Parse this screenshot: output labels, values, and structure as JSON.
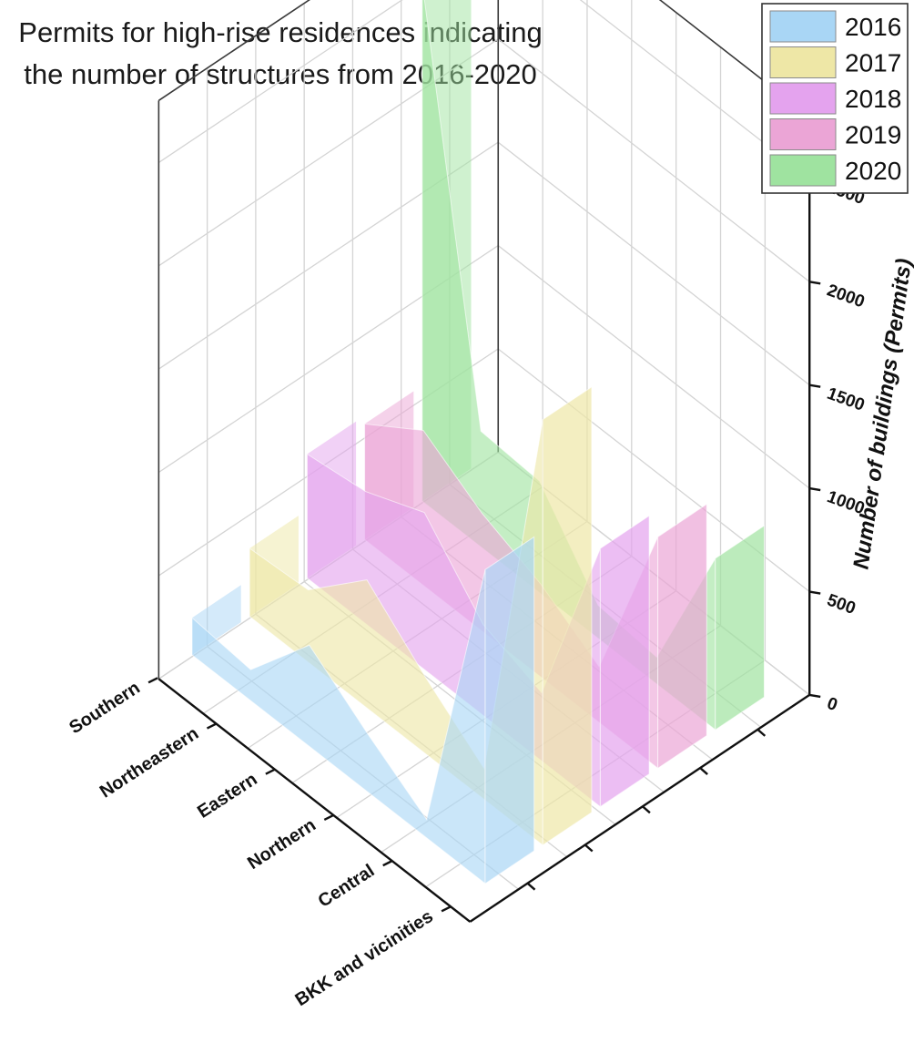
{
  "chart_data": {
    "type": "area",
    "title": [
      "Permits for high-rise residences indicating",
      "the number of structures from 2016-2020"
    ],
    "categories": [
      "BKK and vicinities",
      "Central",
      "Northern",
      "Eastern",
      "Northeastern",
      "Southern"
    ],
    "series": [
      {
        "name": "2016",
        "color": "#a9d6f5",
        "values": [
          1520,
          90,
          280,
          490,
          150,
          180
        ]
      },
      {
        "name": "2017",
        "color": "#eee7a6",
        "values": [
          2060,
          150,
          370,
          620,
          350,
          330
        ]
      },
      {
        "name": "2018",
        "color": "#e4a3ee",
        "values": [
          1250,
          330,
          440,
          760,
          640,
          600
        ]
      },
      {
        "name": "2019",
        "color": "#eba5d6",
        "values": [
          1120,
          270,
          450,
          570,
          750,
          560
        ]
      },
      {
        "name": "2020",
        "color": "#9fe3a0",
        "values": [
          830,
          130,
          160,
          540,
          560,
          2510
        ]
      }
    ],
    "zlabel": "Number of buildings (Permits)",
    "zticks": [
      0,
      500,
      1000,
      1500,
      2000,
      2500
    ],
    "zlim": [
      0,
      2800
    ],
    "legend_position": "top-right",
    "grid": true
  }
}
